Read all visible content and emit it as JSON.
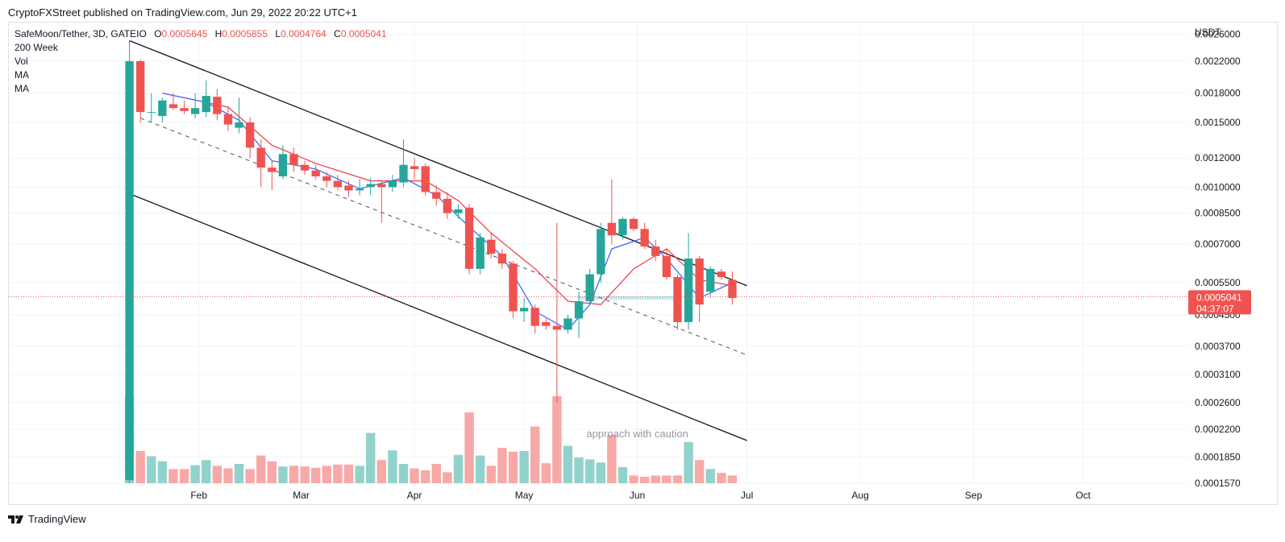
{
  "header": {
    "published": "CryptoFXStreet published on TradingView.com, Jun 29, 2022 20:22 UTC+1"
  },
  "legend": {
    "symbol": "SafeMoon/Tether, 3D, GATEIO",
    "o_label": "O",
    "o_value": "0.0005645",
    "h_label": "H",
    "h_value": "0.0005855",
    "l_label": "L",
    "l_value": "0.0004764",
    "c_label": "C",
    "c_value": "0.0005041",
    "indicators": [
      "200 Week",
      "Vol",
      "MA",
      "MA"
    ]
  },
  "footer": {
    "brand": "TradingView"
  },
  "colors": {
    "up": "#26a69a",
    "down": "#ef5350",
    "up_vol": "#92d2cc",
    "down_vol": "#f7a9a7",
    "ma_fast": "#2962ff",
    "ma_slow": "#f23645",
    "channel": "#131722",
    "grid": "#f0f3fa"
  },
  "chart_data": {
    "type": "candlestick",
    "symbol": "SafeMoon/Tether",
    "interval": "3D",
    "exchange": "GATEIO",
    "y_scale": "log",
    "y_unit": "USDT",
    "ylim": [
      0.000157,
      0.0028
    ],
    "y_ticks": [
      "0.0026000",
      "0.0022000",
      "0.0018000",
      "0.0015000",
      "0.0012000",
      "0.0010000",
      "0.0008500",
      "0.0007000",
      "0.0005500",
      "0.0004500",
      "0.0003700",
      "0.0003100",
      "0.0002600",
      "0.0002200",
      "0.0001850",
      "0.0001570"
    ],
    "x_ticks": [
      "Feb",
      "Mar",
      "Apr",
      "May",
      "Jun",
      "Jul",
      "Aug",
      "Sep",
      "Oct"
    ],
    "x_tick_dates": [
      "2022-02-01",
      "2022-03-01",
      "2022-04-01",
      "2022-05-01",
      "2022-06-01",
      "2022-07-01",
      "2022-08-01",
      "2022-09-01",
      "2022-10-01"
    ],
    "xlim": [
      "2021-12-11",
      "2022-10-30"
    ],
    "grid": true,
    "last_price_label": "0.0005041",
    "countdown_label": "04:37:07",
    "last_price": 0.0005041,
    "annotation": "approach with caution",
    "candles": [
      {
        "date": "2022-01-13",
        "o": 0.00016,
        "h": 0.0025,
        "l": 0.000157,
        "c": 0.0022
      },
      {
        "date": "2022-01-16",
        "o": 0.0022,
        "h": 0.00222,
        "l": 0.0015,
        "c": 0.0016
      },
      {
        "date": "2022-01-19",
        "o": 0.0016,
        "h": 0.0018,
        "l": 0.0015,
        "c": 0.0016
      },
      {
        "date": "2022-01-22",
        "o": 0.00156,
        "h": 0.00175,
        "l": 0.0015,
        "c": 0.00172
      },
      {
        "date": "2022-01-25",
        "o": 0.00168,
        "h": 0.0018,
        "l": 0.00162,
        "c": 0.00164
      },
      {
        "date": "2022-01-28",
        "o": 0.00164,
        "h": 0.00172,
        "l": 0.00158,
        "c": 0.00161
      },
      {
        "date": "2022-01-31",
        "o": 0.00158,
        "h": 0.0018,
        "l": 0.00154,
        "c": 0.00164
      },
      {
        "date": "2022-02-03",
        "o": 0.0016,
        "h": 0.00195,
        "l": 0.00155,
        "c": 0.00177
      },
      {
        "date": "2022-02-06",
        "o": 0.00176,
        "h": 0.00185,
        "l": 0.00152,
        "c": 0.00158
      },
      {
        "date": "2022-02-09",
        "o": 0.00158,
        "h": 0.00166,
        "l": 0.00142,
        "c": 0.00148
      },
      {
        "date": "2022-02-12",
        "o": 0.00145,
        "h": 0.00175,
        "l": 0.0014,
        "c": 0.0015
      },
      {
        "date": "2022-02-15",
        "o": 0.0015,
        "h": 0.00155,
        "l": 0.0012,
        "c": 0.00128
      },
      {
        "date": "2022-02-18",
        "o": 0.00128,
        "h": 0.00135,
        "l": 0.001,
        "c": 0.00113
      },
      {
        "date": "2022-02-21",
        "o": 0.00113,
        "h": 0.00118,
        "l": 0.00098,
        "c": 0.0011
      },
      {
        "date": "2022-02-24",
        "o": 0.00107,
        "h": 0.0013,
        "l": 0.00105,
        "c": 0.00123
      },
      {
        "date": "2022-02-27",
        "o": 0.00123,
        "h": 0.00128,
        "l": 0.0011,
        "c": 0.00115
      },
      {
        "date": "2022-03-02",
        "o": 0.00115,
        "h": 0.00118,
        "l": 0.00108,
        "c": 0.00111
      },
      {
        "date": "2022-03-05",
        "o": 0.00111,
        "h": 0.00115,
        "l": 0.00105,
        "c": 0.00107
      },
      {
        "date": "2022-03-08",
        "o": 0.00107,
        "h": 0.0011,
        "l": 0.001,
        "c": 0.00104
      },
      {
        "date": "2022-03-11",
        "o": 0.00104,
        "h": 0.00108,
        "l": 0.00098,
        "c": 0.001
      },
      {
        "date": "2022-03-14",
        "o": 0.00101,
        "h": 0.00104,
        "l": 0.00094,
        "c": 0.00098
      },
      {
        "date": "2022-03-17",
        "o": 0.00098,
        "h": 0.00105,
        "l": 0.00095,
        "c": 0.00099
      },
      {
        "date": "2022-03-20",
        "o": 0.001,
        "h": 0.00106,
        "l": 0.00095,
        "c": 0.00102
      },
      {
        "date": "2022-03-23",
        "o": 0.00102,
        "h": 0.00104,
        "l": 0.0008,
        "c": 0.001
      },
      {
        "date": "2022-03-26",
        "o": 0.001,
        "h": 0.00108,
        "l": 0.00097,
        "c": 0.00104
      },
      {
        "date": "2022-03-29",
        "o": 0.00103,
        "h": 0.00135,
        "l": 0.001,
        "c": 0.00115
      },
      {
        "date": "2022-04-01",
        "o": 0.00114,
        "h": 0.0012,
        "l": 0.00105,
        "c": 0.00112
      },
      {
        "date": "2022-04-04",
        "o": 0.00114,
        "h": 0.00116,
        "l": 0.00095,
        "c": 0.00097
      },
      {
        "date": "2022-04-07",
        "o": 0.00097,
        "h": 0.00101,
        "l": 0.00089,
        "c": 0.00093
      },
      {
        "date": "2022-04-10",
        "o": 0.00093,
        "h": 0.00097,
        "l": 0.00082,
        "c": 0.00085
      },
      {
        "date": "2022-04-13",
        "o": 0.00085,
        "h": 0.0009,
        "l": 0.00082,
        "c": 0.00087
      },
      {
        "date": "2022-04-16",
        "o": 0.00088,
        "h": 0.0009,
        "l": 0.00058,
        "c": 0.0006
      },
      {
        "date": "2022-04-19",
        "o": 0.0006,
        "h": 0.00075,
        "l": 0.00058,
        "c": 0.00073
      },
      {
        "date": "2022-04-22",
        "o": 0.00072,
        "h": 0.00075,
        "l": 0.00064,
        "c": 0.00066
      },
      {
        "date": "2022-04-25",
        "o": 0.00066,
        "h": 0.00068,
        "l": 0.0006,
        "c": 0.00062
      },
      {
        "date": "2022-04-28",
        "o": 0.00062,
        "h": 0.00063,
        "l": 0.00044,
        "c": 0.00046
      },
      {
        "date": "2022-05-01",
        "o": 0.00046,
        "h": 0.0005,
        "l": 0.00043,
        "c": 0.00047
      },
      {
        "date": "2022-05-04",
        "o": 0.00047,
        "h": 0.00048,
        "l": 0.0004,
        "c": 0.00042
      },
      {
        "date": "2022-05-07",
        "o": 0.00043,
        "h": 0.00044,
        "l": 0.00041,
        "c": 0.00042
      },
      {
        "date": "2022-05-10",
        "o": 0.00042,
        "h": 0.0008,
        "l": 0.00026,
        "c": 0.00041
      },
      {
        "date": "2022-05-13",
        "o": 0.00041,
        "h": 0.00045,
        "l": 0.0004,
        "c": 0.00044
      },
      {
        "date": "2022-05-16",
        "o": 0.00044,
        "h": 0.00052,
        "l": 0.00039,
        "c": 0.00049
      },
      {
        "date": "2022-05-19",
        "o": 0.00049,
        "h": 0.0006,
        "l": 0.00048,
        "c": 0.00058
      },
      {
        "date": "2022-05-22",
        "o": 0.00058,
        "h": 0.0008,
        "l": 0.00055,
        "c": 0.00077
      },
      {
        "date": "2022-05-25",
        "o": 0.0008,
        "h": 0.00105,
        "l": 0.0007,
        "c": 0.00074
      },
      {
        "date": "2022-05-28",
        "o": 0.00074,
        "h": 0.00083,
        "l": 0.00072,
        "c": 0.00082
      },
      {
        "date": "2022-05-31",
        "o": 0.00082,
        "h": 0.00083,
        "l": 0.00076,
        "c": 0.00077
      },
      {
        "date": "2022-06-03",
        "o": 0.00077,
        "h": 0.0008,
        "l": 0.00068,
        "c": 0.00069
      },
      {
        "date": "2022-06-06",
        "o": 0.00069,
        "h": 0.00072,
        "l": 0.00063,
        "c": 0.00065
      },
      {
        "date": "2022-06-09",
        "o": 0.00065,
        "h": 0.00068,
        "l": 0.00056,
        "c": 0.00057
      },
      {
        "date": "2022-06-12",
        "o": 0.00057,
        "h": 0.00058,
        "l": 0.00041,
        "c": 0.00043
      },
      {
        "date": "2022-06-15",
        "o": 0.00043,
        "h": 0.00075,
        "l": 0.00041,
        "c": 0.00064
      },
      {
        "date": "2022-06-18",
        "o": 0.00064,
        "h": 0.00065,
        "l": 0.00043,
        "c": 0.00048
      },
      {
        "date": "2022-06-21",
        "o": 0.00052,
        "h": 0.00061,
        "l": 0.0005,
        "c": 0.0006
      },
      {
        "date": "2022-06-24",
        "o": 0.00059,
        "h": 0.0006,
        "l": 0.00056,
        "c": 0.00057
      },
      {
        "date": "2022-06-27",
        "o": 0.00056,
        "h": 0.00059,
        "l": 0.00048,
        "c": 0.0005
      }
    ],
    "volume_relative": [
      1.35,
      0.5,
      0.42,
      0.34,
      0.22,
      0.22,
      0.28,
      0.36,
      0.27,
      0.23,
      0.3,
      0.22,
      0.43,
      0.34,
      0.26,
      0.27,
      0.26,
      0.24,
      0.27,
      0.29,
      0.29,
      0.27,
      0.78,
      0.36,
      0.51,
      0.3,
      0.23,
      0.2,
      0.3,
      0.17,
      0.44,
      1.1,
      0.43,
      0.27,
      0.55,
      0.49,
      0.5,
      0.88,
      0.31,
      1.35,
      0.58,
      0.4,
      0.37,
      0.32,
      0.75,
      0.25,
      0.12,
      0.1,
      0.12,
      0.12,
      0.12,
      0.64,
      0.36,
      0.22,
      0.16,
      0.12
    ],
    "ma_fast": [
      {
        "date": "2022-01-22",
        "v": 0.0018
      },
      {
        "date": "2022-02-03",
        "v": 0.0017
      },
      {
        "date": "2022-02-12",
        "v": 0.00152
      },
      {
        "date": "2022-02-21",
        "v": 0.00118
      },
      {
        "date": "2022-03-05",
        "v": 0.00112
      },
      {
        "date": "2022-03-17",
        "v": 0.00099
      },
      {
        "date": "2022-03-29",
        "v": 0.00106
      },
      {
        "date": "2022-04-07",
        "v": 0.00095
      },
      {
        "date": "2022-04-16",
        "v": 0.00078
      },
      {
        "date": "2022-04-25",
        "v": 0.00065
      },
      {
        "date": "2022-05-04",
        "v": 0.00046
      },
      {
        "date": "2022-05-13",
        "v": 0.00041
      },
      {
        "date": "2022-05-19",
        "v": 0.00048
      },
      {
        "date": "2022-05-25",
        "v": 0.00068
      },
      {
        "date": "2022-06-03",
        "v": 0.00073
      },
      {
        "date": "2022-06-09",
        "v": 0.00064
      },
      {
        "date": "2022-06-18",
        "v": 0.0005
      },
      {
        "date": "2022-06-27",
        "v": 0.00055
      }
    ],
    "ma_slow": [
      {
        "date": "2022-01-22",
        "v": 0.0018
      },
      {
        "date": "2022-02-09",
        "v": 0.00165
      },
      {
        "date": "2022-02-21",
        "v": 0.0013
      },
      {
        "date": "2022-03-05",
        "v": 0.00116
      },
      {
        "date": "2022-03-20",
        "v": 0.00104
      },
      {
        "date": "2022-04-04",
        "v": 0.00104
      },
      {
        "date": "2022-04-13",
        "v": 0.00092
      },
      {
        "date": "2022-04-22",
        "v": 0.00075
      },
      {
        "date": "2022-05-04",
        "v": 0.0006
      },
      {
        "date": "2022-05-13",
        "v": 0.00049
      },
      {
        "date": "2022-05-22",
        "v": 0.00048
      },
      {
        "date": "2022-05-31",
        "v": 0.0006
      },
      {
        "date": "2022-06-09",
        "v": 0.00068
      },
      {
        "date": "2022-06-18",
        "v": 0.00056
      },
      {
        "date": "2022-06-27",
        "v": 0.00054
      }
    ],
    "trendlines": [
      {
        "kind": "channel-upper",
        "from": {
          "date": "2022-01-13",
          "v": 0.0025
        },
        "to": {
          "date": "2022-07-01",
          "v": 0.00054
        }
      },
      {
        "kind": "channel-lower",
        "from": {
          "date": "2022-01-13",
          "v": 0.00096
        },
        "to": {
          "date": "2022-07-01",
          "v": 0.000205
        }
      },
      {
        "kind": "channel-mid-dashed",
        "from": {
          "date": "2022-01-16",
          "v": 0.00154
        },
        "to": {
          "date": "2022-07-01",
          "v": 0.00035
        }
      }
    ],
    "highlight_zone": {
      "from": "2022-05-16",
      "to": "2022-06-12",
      "v_low": 0.000495,
      "v_high": 0.000505
    }
  }
}
